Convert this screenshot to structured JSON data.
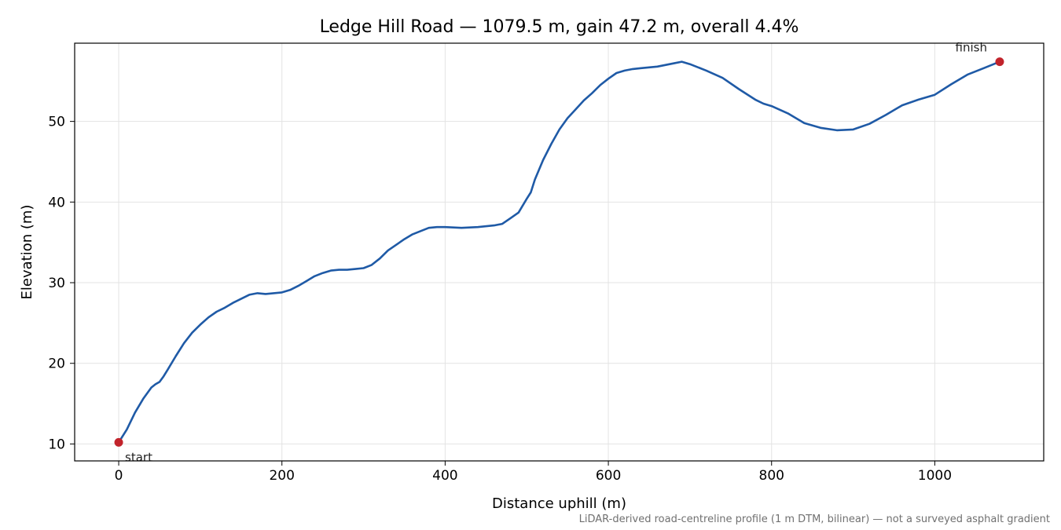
{
  "chart_data": {
    "type": "line",
    "title": "Ledge Hill Road — 1079.5 m, gain 47.2 m, overall 4.4%",
    "xlabel": "Distance uphill (m)",
    "ylabel": "Elevation (m)",
    "xlim": [
      -53.97,
      1133.47
    ],
    "ylim": [
      7.9,
      59.7
    ],
    "xticks": [
      0,
      200,
      400,
      600,
      800,
      1000
    ],
    "yticks": [
      10,
      20,
      30,
      40,
      50
    ],
    "grid": true,
    "footnote": "LiDAR-derived road-centreline profile (1 m DTM, bilinear) — not a surveyed asphalt gradient",
    "series": [
      {
        "name": "",
        "color": "#1f5aa6",
        "x": [
          0,
          10,
          20,
          30,
          40,
          45,
          50,
          55,
          60,
          70,
          80,
          90,
          100,
          110,
          120,
          130,
          140,
          150,
          160,
          170,
          180,
          190,
          200,
          210,
          220,
          230,
          240,
          250,
          260,
          270,
          280,
          290,
          300,
          310,
          320,
          330,
          340,
          350,
          360,
          370,
          380,
          390,
          400,
          420,
          440,
          460,
          470,
          480,
          490,
          500,
          505,
          510,
          515,
          520,
          530,
          540,
          550,
          560,
          570,
          580,
          590,
          600,
          610,
          620,
          630,
          640,
          660,
          680,
          690,
          700,
          720,
          740,
          760,
          780,
          790,
          800,
          820,
          840,
          860,
          880,
          900,
          920,
          940,
          960,
          980,
          1000,
          1020,
          1040,
          1060,
          1079.5
        ],
        "y": [
          10.2,
          11.8,
          13.9,
          15.6,
          17.0,
          17.4,
          17.7,
          18.4,
          19.2,
          20.9,
          22.5,
          23.8,
          24.8,
          25.7,
          26.4,
          26.9,
          27.5,
          28.0,
          28.5,
          28.7,
          28.6,
          28.7,
          28.8,
          29.1,
          29.6,
          30.2,
          30.8,
          31.2,
          31.5,
          31.6,
          31.6,
          31.7,
          31.8,
          32.2,
          33.0,
          34.0,
          34.7,
          35.4,
          36.0,
          36.4,
          36.8,
          36.9,
          36.9,
          36.8,
          36.9,
          37.1,
          37.3,
          38.0,
          38.7,
          40.4,
          41.2,
          42.8,
          44.0,
          45.2,
          47.2,
          49.0,
          50.4,
          51.5,
          52.6,
          53.5,
          54.5,
          55.3,
          56.0,
          56.3,
          56.5,
          56.6,
          56.8,
          57.2,
          57.4,
          57.1,
          56.3,
          55.4,
          54.0,
          52.7,
          52.2,
          51.9,
          51.0,
          49.8,
          49.2,
          48.9,
          49.0,
          49.7,
          50.8,
          52.0,
          52.7,
          53.3,
          54.6,
          55.8,
          56.6,
          57.4
        ]
      }
    ],
    "points": [
      {
        "x": 0,
        "y": 10.2,
        "label": "start",
        "label_pos": "below-right",
        "color": "#c1232b"
      },
      {
        "x": 1079.5,
        "y": 57.4,
        "label": "finish",
        "label_pos": "above-left",
        "color": "#c1232b"
      }
    ]
  }
}
